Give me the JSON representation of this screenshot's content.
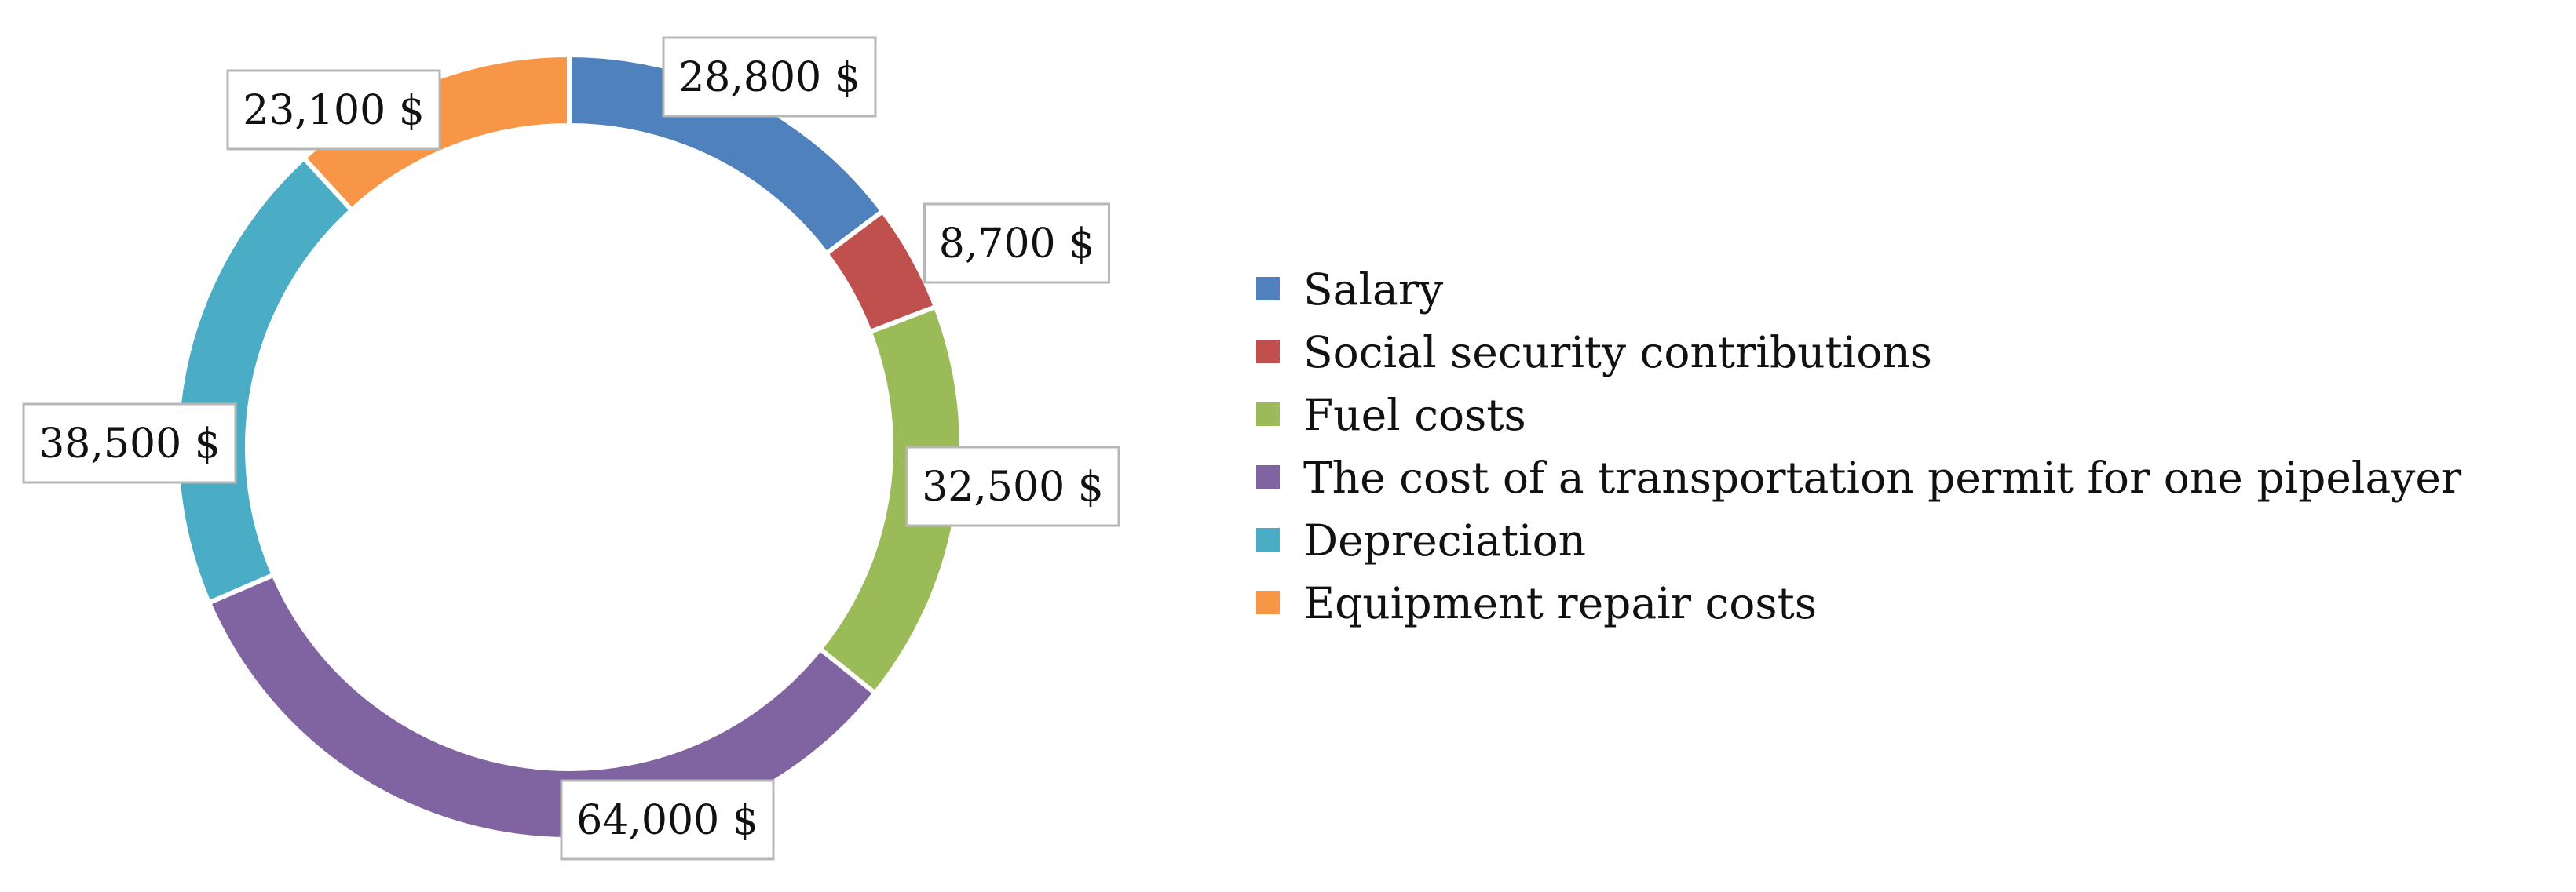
{
  "chart_data": {
    "type": "pie",
    "variant": "donut",
    "title": "",
    "categories": [
      "Salary",
      "Social security contributions",
      "Fuel costs",
      "The cost of a transportation permit for one pipelayer",
      "Depreciation",
      "Equipment repair costs"
    ],
    "values": [
      28800,
      8700,
      32500,
      64000,
      38500,
      23100
    ],
    "data_labels": [
      "28,800 $",
      "8,700 $",
      "32,500 $",
      "64,000 $",
      "38,500 $",
      "23,100 $"
    ],
    "colors": [
      "#4f81bd",
      "#c0504d",
      "#9bbb59",
      "#8064a2",
      "#4bacc6",
      "#f79646"
    ],
    "legend_position": "right",
    "start_angle": "12 o'clock",
    "direction": "clockwise"
  }
}
